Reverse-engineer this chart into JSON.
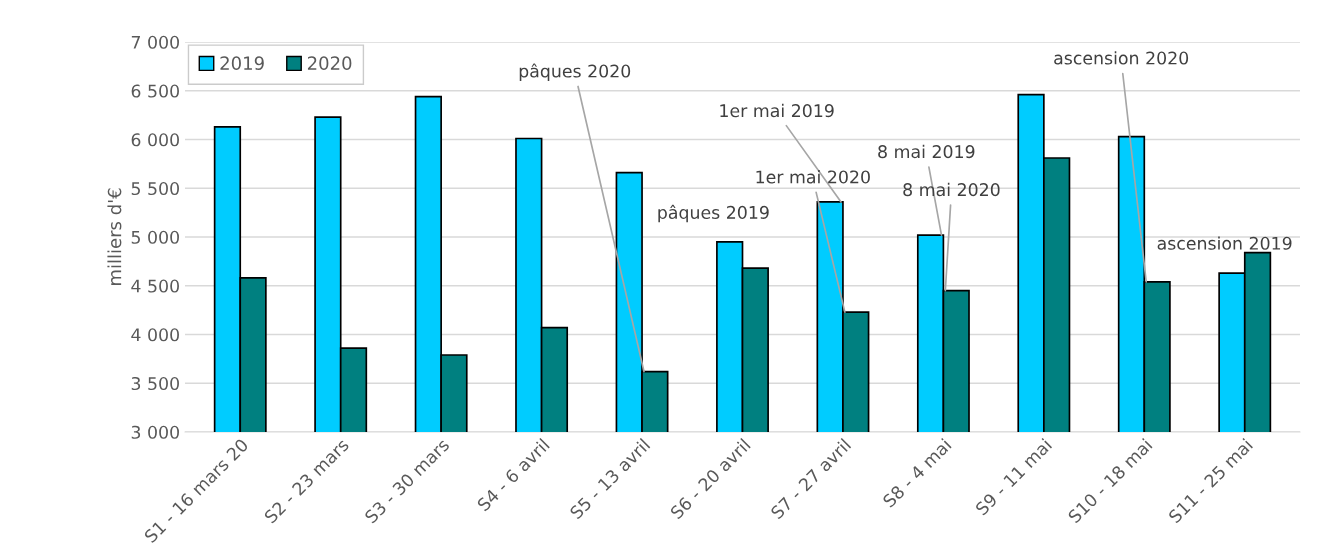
{
  "chart_data": {
    "type": "bar",
    "ylabel": "milliers d'€",
    "categories": [
      "S1 - 16 mars 20",
      "S2 - 23 mars",
      "S3 - 30 mars",
      "S4 - 6 avril",
      "S5 - 13 avril",
      "S6 - 20 avril",
      "S7 - 27 avril",
      "S8 - 4 mai",
      "S9 - 11 mai",
      "S10 - 18 mai",
      "S11 - 25 mai"
    ],
    "series": [
      {
        "name": "2019",
        "color": "#00ccff",
        "values": [
          6130,
          6230,
          6440,
          6010,
          5660,
          4950,
          5360,
          5020,
          6460,
          6030,
          4630
        ]
      },
      {
        "name": "2020",
        "color": "#008080",
        "values": [
          4580,
          3860,
          3790,
          4070,
          3620,
          4680,
          4230,
          4450,
          5810,
          4540,
          4840
        ]
      }
    ],
    "ylim": [
      3000,
      7000
    ],
    "yticks": [
      {
        "value": 3000,
        "label": "3 000"
      },
      {
        "value": 3500,
        "label": "3 500"
      },
      {
        "value": 4000,
        "label": "4 000"
      },
      {
        "value": 4500,
        "label": "4 500"
      },
      {
        "value": 5000,
        "label": "5 000"
      },
      {
        "value": 5500,
        "label": "5 500"
      },
      {
        "value": 6000,
        "label": "6 000"
      },
      {
        "value": 6500,
        "label": "6 500"
      },
      {
        "value": 7000,
        "label": "7 000"
      }
    ],
    "grid": "y",
    "legend": "top left",
    "annotations": [
      {
        "text": "pâques 2020",
        "x": "S5 - 13 avril",
        "y": 3620
      },
      {
        "text": "pâques 2019",
        "x": "S6 - 20 avril",
        "y": 4950
      },
      {
        "text": "1er mai 2019",
        "x": "S7 - 27 avril",
        "y": 5360
      },
      {
        "text": "1er mai 2020",
        "x": "S7 - 27 avril",
        "y": 4230
      },
      {
        "text": "8 mai 2019",
        "x": "S8 - 4 mai",
        "y": 5020
      },
      {
        "text": "8 mai 2020",
        "x": "S8 - 4 mai",
        "y": 4450
      },
      {
        "text": "ascension 2020",
        "x": "S10 - 18 mai",
        "y": 4540
      },
      {
        "text": "ascension 2019",
        "x": "S11 - 25 mai",
        "y": 4630
      }
    ]
  }
}
